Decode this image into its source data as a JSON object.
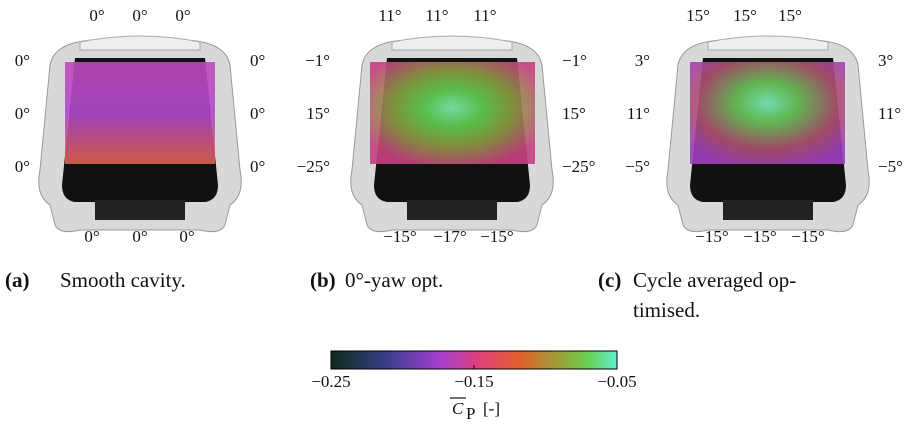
{
  "panels": [
    {
      "label": "(a)",
      "caption": [
        "Smooth cavity."
      ],
      "top": [
        "0°",
        "0°",
        "0°"
      ],
      "left": [
        "0°",
        "0°",
        "0°"
      ],
      "right": [
        "0°",
        "0°",
        "0°"
      ],
      "bottom": [
        "0°",
        "0°",
        "0°"
      ]
    },
    {
      "label": "(b)",
      "caption": [
        "0°-yaw opt."
      ],
      "top": [
        "11°",
        "11°",
        "11°"
      ],
      "left": [
        "−1°",
        "15°",
        "−25°"
      ],
      "right": [
        "−1°",
        "15°",
        "−25°"
      ],
      "bottom": [
        "−15°",
        "−17°",
        "−15°"
      ]
    },
    {
      "label": "(c)",
      "caption": [
        "Cycle averaged op-",
        "timised."
      ],
      "top": [
        "15°",
        "15°",
        "15°"
      ],
      "left": [
        "3°",
        "11°",
        "−5°"
      ],
      "right": [
        "3°",
        "11°",
        "−5°"
      ],
      "bottom": [
        "−15°",
        "−15°",
        "−15°"
      ]
    }
  ],
  "colorbar": {
    "lim": [
      -0.25,
      -0.05
    ],
    "ticks": [
      {
        "value": -0.25,
        "label": "−0.25"
      },
      {
        "value": -0.15,
        "label": "−0.15"
      },
      {
        "value": -0.05,
        "label": "−0.05"
      }
    ],
    "symbol": "C",
    "subscript": "P",
    "unit": "[-]"
  }
}
